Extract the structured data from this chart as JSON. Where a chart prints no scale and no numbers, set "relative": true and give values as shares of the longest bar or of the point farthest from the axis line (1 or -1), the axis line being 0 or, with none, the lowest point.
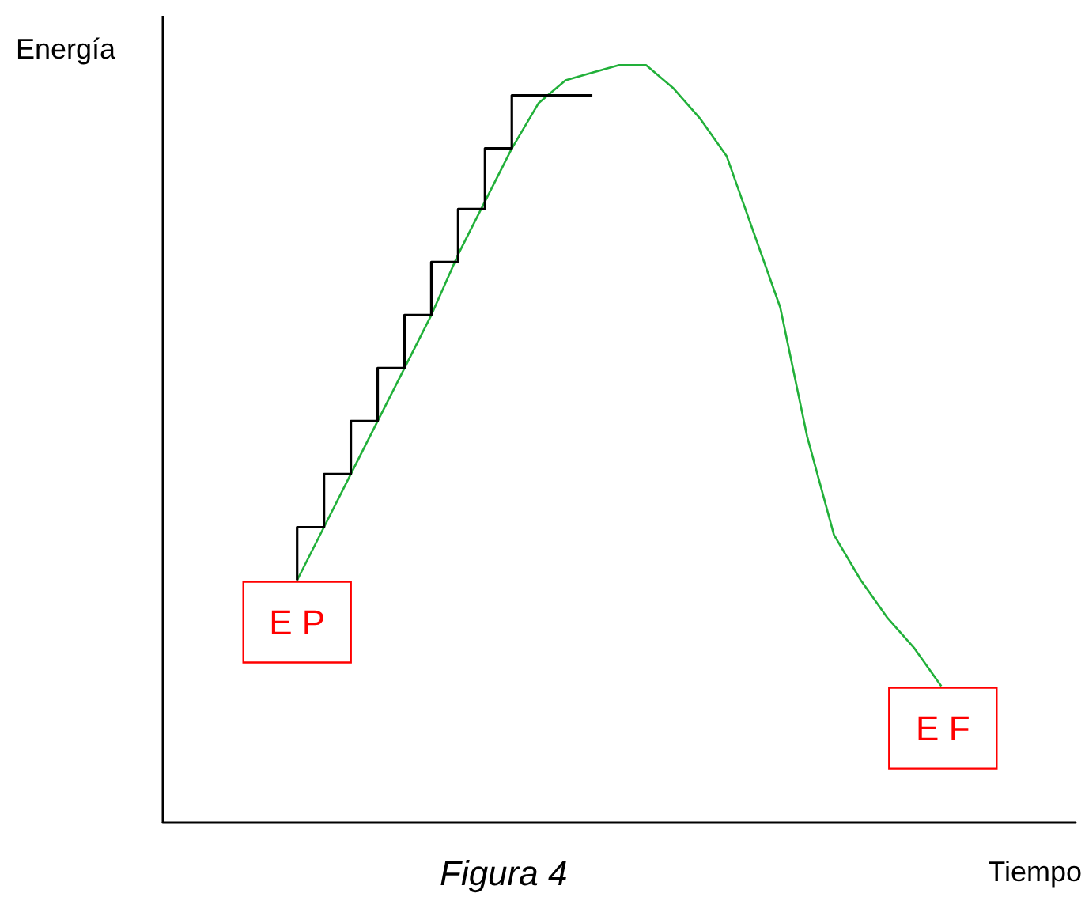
{
  "chart_data": {
    "type": "line",
    "relative": true,
    "xlabel": "Tiempo",
    "ylabel": "Energía",
    "categories": [
      null,
      null,
      null,
      null,
      null,
      null,
      null,
      null,
      null,
      null,
      null,
      null,
      null,
      null,
      null,
      null,
      null,
      null,
      null,
      null,
      null,
      null,
      null,
      null,
      null,
      null,
      null,
      null,
      null,
      null,
      null,
      null,
      null,
      null,
      null
    ],
    "series": [
      {
        "color": "#22b03a",
        "values": [
          null,
          null,
          null,
          null,
          null,
          0.32,
          0.39,
          0.46,
          0.53,
          0.6,
          0.67,
          0.75,
          0.82,
          0.89,
          0.95,
          0.98,
          0.99,
          1,
          1,
          0.97,
          0.93,
          0.88,
          0.78,
          0.68,
          0.51,
          0.38,
          0.32,
          0.27,
          0.23,
          0.18,
          null,
          null,
          null,
          null,
          null
        ]
      },
      {
        "type": "step",
        "color": "#000000",
        "values": [
          null,
          null,
          null,
          null,
          null,
          0.32,
          0.39,
          0.46,
          0.53,
          0.6,
          0.67,
          0.74,
          0.81,
          0.89,
          0.96,
          0.96,
          0.96,
          null,
          null,
          null,
          null,
          null,
          null,
          null,
          null,
          null,
          null,
          null,
          null,
          null,
          null,
          null,
          null,
          null,
          null
        ]
      }
    ],
    "annotations": [
      "E P",
      "E F",
      "Figura 4"
    ],
    "grid": false,
    "marker": "none"
  }
}
